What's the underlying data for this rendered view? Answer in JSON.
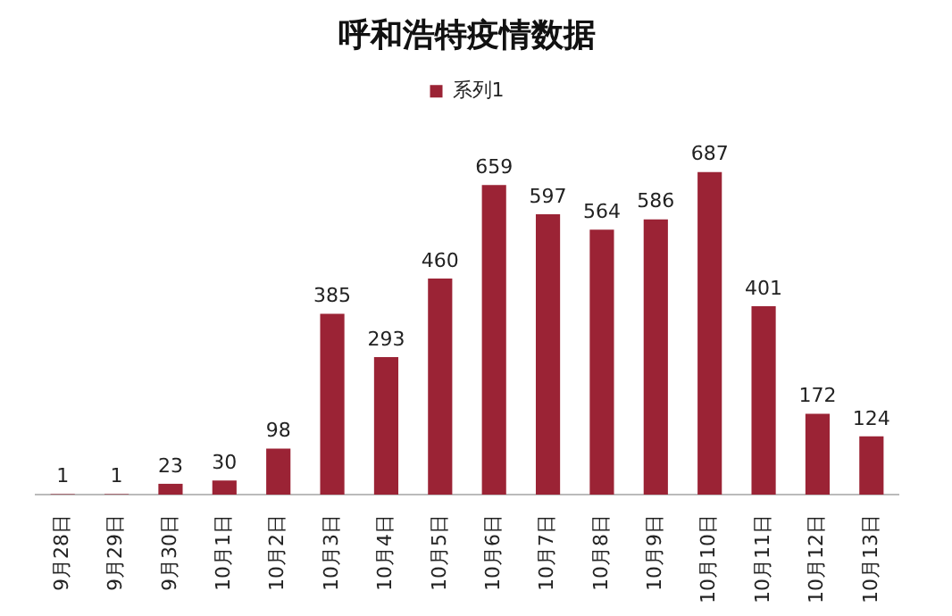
{
  "chart_data": {
    "type": "bar",
    "title": "呼和浩特疫情数据",
    "categories": [
      "9月28日",
      "9月29日",
      "9月30日",
      "10月1日",
      "10月2日",
      "10月3日",
      "10月4日",
      "10月5日",
      "10月6日",
      "10月7日",
      "10月8日",
      "10月9日",
      "10月10日",
      "10月11日",
      "10月12日",
      "10月13日"
    ],
    "series": [
      {
        "name": "系列1",
        "color": "#9b2335",
        "values": [
          1,
          1,
          23,
          30,
          98,
          385,
          293,
          460,
          659,
          597,
          564,
          586,
          687,
          401,
          172,
          124
        ]
      }
    ],
    "data_labels": true,
    "legend": "top",
    "grid": false
  }
}
